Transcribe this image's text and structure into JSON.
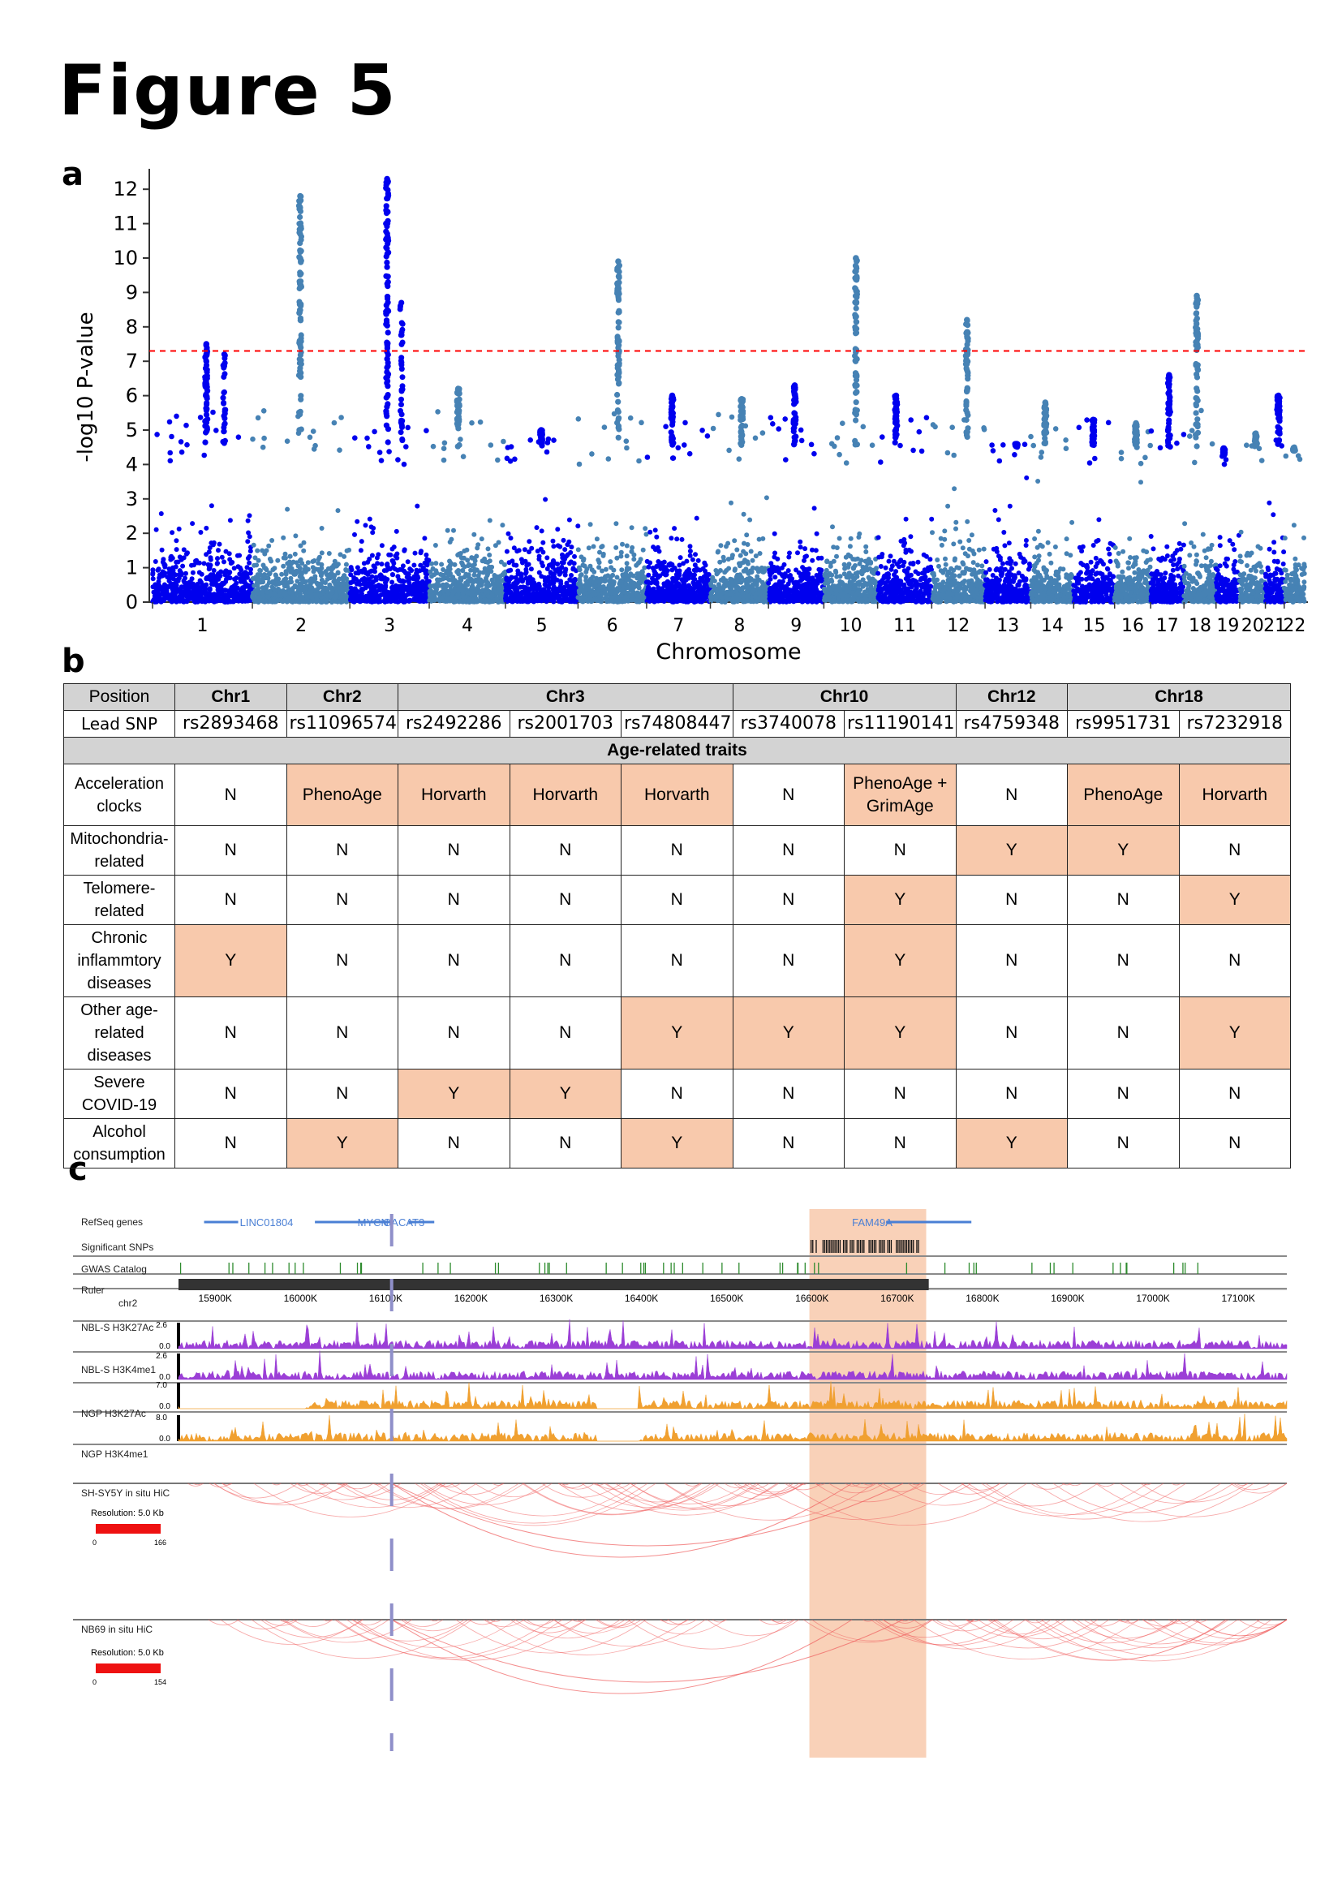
{
  "figure_title": "Figure 5",
  "panels": {
    "a": "a",
    "b": "b",
    "c": "c"
  },
  "chart_data": [
    {
      "type": "scatter",
      "panel": "a",
      "xlabel": "Chromosome",
      "ylabel": "-log10 P-value",
      "ylim": [
        0,
        12.5
      ],
      "yticks": [
        0,
        1,
        2,
        3,
        4,
        5,
        6,
        7,
        8,
        9,
        10,
        11,
        12
      ],
      "chromosomes": [
        "1",
        "2",
        "3",
        "4",
        "5",
        "6",
        "7",
        "8",
        "9",
        "10",
        "11",
        "12",
        "13",
        "14",
        "15",
        "16",
        "17",
        "18",
        "19",
        "20",
        "21",
        "22"
      ],
      "chromosome_lengths_rel": [
        249,
        243,
        198,
        190,
        181,
        171,
        159,
        145,
        138,
        134,
        135,
        133,
        114,
        107,
        102,
        90,
        83,
        80,
        59,
        64,
        47,
        51
      ],
      "significance_threshold": 7.3,
      "colors": {
        "odd_chromosomes": "#0000ee",
        "even_chromosomes": "#4682b4",
        "threshold_line": "#ff0000"
      },
      "chromosome_peaks": [
        {
          "chr": "1",
          "max": 7.5,
          "secondary": 7.2
        },
        {
          "chr": "2",
          "max": 11.8
        },
        {
          "chr": "3",
          "max": 12.3,
          "secondary": 8.7
        },
        {
          "chr": "4",
          "max": 6.2
        },
        {
          "chr": "5",
          "max": 5.0
        },
        {
          "chr": "6",
          "max": 9.9
        },
        {
          "chr": "7",
          "max": 6.0
        },
        {
          "chr": "8",
          "max": 5.9
        },
        {
          "chr": "9",
          "max": 6.3
        },
        {
          "chr": "10",
          "max": 10.0
        },
        {
          "chr": "11",
          "max": 6.0
        },
        {
          "chr": "12",
          "max": 8.2
        },
        {
          "chr": "13",
          "max": 4.6
        },
        {
          "chr": "14",
          "max": 5.8
        },
        {
          "chr": "15",
          "max": 5.3
        },
        {
          "chr": "16",
          "max": 5.2
        },
        {
          "chr": "17",
          "max": 6.6
        },
        {
          "chr": "18",
          "max": 8.9
        },
        {
          "chr": "19",
          "max": 4.3
        },
        {
          "chr": "20",
          "max": 4.9
        },
        {
          "chr": "21",
          "max": 6.0
        },
        {
          "chr": "22",
          "max": 4.4
        }
      ]
    }
  ],
  "traits_table": {
    "position_label": "Position",
    "lead_snp_label": "Lead SNP",
    "chromosome_groups": [
      {
        "name": "Chr1",
        "span": 1
      },
      {
        "name": "Chr2",
        "span": 1
      },
      {
        "name": "Chr3",
        "span": 3
      },
      {
        "name": "Chr10",
        "span": 2
      },
      {
        "name": "Chr12",
        "span": 1
      },
      {
        "name": "Chr18",
        "span": 2
      }
    ],
    "snps": [
      "rs2893468",
      "rs11096574",
      "rs2492286",
      "rs2001703",
      "rs74808447",
      "rs3740078",
      "rs11190141",
      "rs4759348",
      "rs9951731",
      "rs7232918"
    ],
    "section_title": "Age-related traits",
    "rows": [
      {
        "label": "Acceleration clocks",
        "cells": [
          "N",
          "PhenoAge",
          "Horvarth",
          "Horvarth",
          "Horvarth",
          "N",
          "PhenoAge + GrimAge",
          "N",
          "PhenoAge",
          "Horvarth"
        ],
        "highlight": [
          0,
          1,
          1,
          1,
          1,
          0,
          1,
          0,
          1,
          1
        ]
      },
      {
        "label": "Mitochondria-related",
        "cells": [
          "N",
          "N",
          "N",
          "N",
          "N",
          "N",
          "N",
          "Y",
          "Y",
          "N"
        ],
        "highlight": [
          0,
          0,
          0,
          0,
          0,
          0,
          0,
          1,
          1,
          0
        ]
      },
      {
        "label": "Telomere-related",
        "cells": [
          "N",
          "N",
          "N",
          "N",
          "N",
          "N",
          "Y",
          "N",
          "N",
          "Y"
        ],
        "highlight": [
          0,
          0,
          0,
          0,
          0,
          0,
          1,
          0,
          0,
          1
        ]
      },
      {
        "label": "Chronic inflammtory diseases",
        "cells": [
          "Y",
          "N",
          "N",
          "N",
          "N",
          "N",
          "Y",
          "N",
          "N",
          "N"
        ],
        "highlight": [
          1,
          0,
          0,
          0,
          0,
          0,
          1,
          0,
          0,
          0
        ]
      },
      {
        "label": "Other age-related diseases",
        "cells": [
          "N",
          "N",
          "N",
          "N",
          "Y",
          "Y",
          "Y",
          "N",
          "N",
          "Y"
        ],
        "highlight": [
          0,
          0,
          0,
          0,
          1,
          1,
          1,
          0,
          0,
          1
        ]
      },
      {
        "label": "Severe COVID-19",
        "cells": [
          "N",
          "N",
          "Y",
          "Y",
          "N",
          "N",
          "N",
          "N",
          "N",
          "N"
        ],
        "highlight": [
          0,
          0,
          1,
          1,
          0,
          0,
          0,
          0,
          0,
          0
        ]
      },
      {
        "label": "Alcohol consumption",
        "cells": [
          "N",
          "Y",
          "N",
          "N",
          "Y",
          "N",
          "N",
          "Y",
          "N",
          "N"
        ],
        "highlight": [
          0,
          1,
          0,
          0,
          1,
          0,
          0,
          1,
          0,
          0
        ]
      }
    ],
    "highlight_color": "#f8c9ac"
  },
  "browser": {
    "tracks": {
      "refseq": "RefSeq genes",
      "sig_snps": "Significant SNPs",
      "gwas": "GWAS Catalog",
      "ruler": "Ruler",
      "ruler_chrom": "chr2",
      "h3k27ac_nbl": "NBL-S H3K27Ac",
      "h3k4me1_nbl": "NBL-S H3K4me1",
      "h3k27ac_ngp": "NGP H3K27Ac",
      "h3k4me1_ngp": "NGP H3K4me1",
      "hic1": "SH-SY5Y in situ HiC",
      "hic2": "NB69 in situ HiC"
    },
    "genes": [
      "LINC01804",
      "MYCN",
      "GACAT3",
      "FAM49A"
    ],
    "ruler_ticks": [
      "15900K",
      "16000K",
      "16100K",
      "16200K",
      "16300K",
      "16400K",
      "16500K",
      "16600K",
      "16700K",
      "16800K",
      "16900K",
      "17000K",
      "17100K"
    ],
    "scales": {
      "nbl_h3k27ac": {
        "max": "2.6",
        "min": "0.0"
      },
      "nbl_h3k4me1": {
        "max": "2.6",
        "min": "0.0"
      },
      "ngp_h3k27ac": {
        "max": "7.0",
        "min": "0.0"
      },
      "ngp_h3k4me1": {
        "max": "8.0",
        "min": "0.0"
      }
    },
    "hic1_resolution": "Resolution: 5.0 Kb",
    "hic1_scale": {
      "min": "0",
      "max": "166"
    },
    "hic2_resolution": "Resolution: 5.0 Kb",
    "hic2_scale": {
      "min": "0",
      "max": "154"
    },
    "colors": {
      "nbl": "#9b3fd6",
      "ngp": "#f0a030",
      "hic": "#f06060",
      "highlight": "#f8c9ac",
      "gene": "#4a7fd4",
      "gwas": "#2e8b2e",
      "marker": "#8f8fc9"
    }
  }
}
